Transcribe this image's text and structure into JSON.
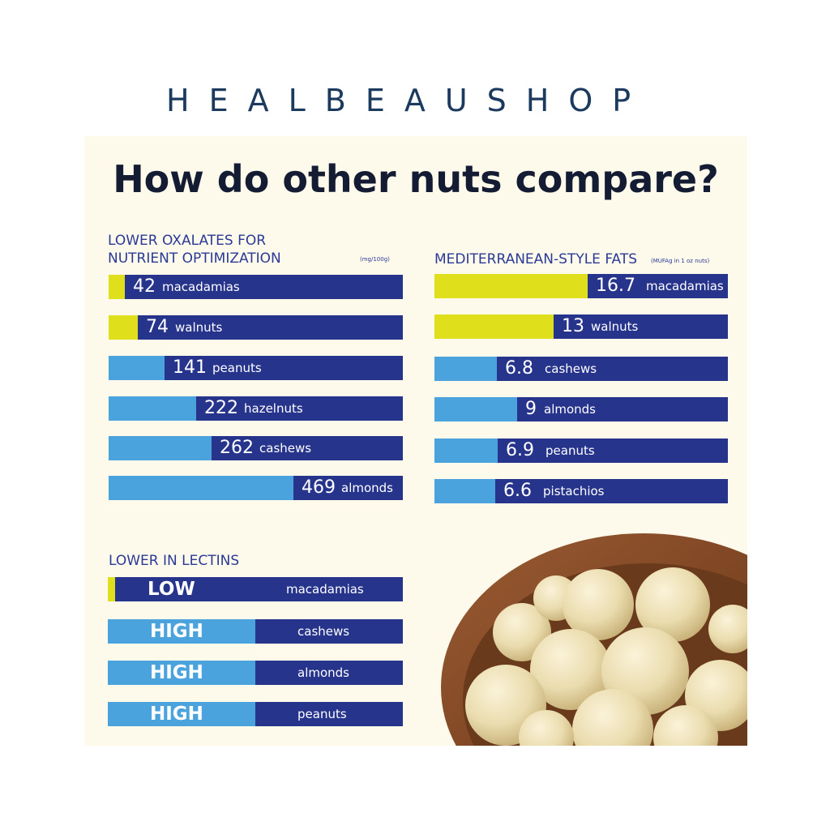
{
  "brand": "HEALBEAUSHOP",
  "title": "How do other nuts compare?",
  "colors": {
    "navy": "#27348b",
    "light_blue": "#4aa3dc",
    "yellow": "#dfe01b",
    "panel": "#fdf9eb"
  },
  "chart_data": [
    {
      "type": "bar",
      "id": "oxalates",
      "title": "LOWER OXALATES FOR\nNUTRIENT OPTIMIZATION",
      "unit_label": "(mg/100g)",
      "orientation": "horizontal",
      "scale_max": 746,
      "categories": [
        "macadamias",
        "walnuts",
        "peanuts",
        "hazelnuts",
        "cashews",
        "almonds"
      ],
      "labels": [
        "42",
        "74",
        "141",
        "222",
        "262",
        "469"
      ],
      "values": [
        42,
        74,
        141,
        222,
        262,
        469
      ],
      "highlight": [
        "macadamias",
        "walnuts"
      ]
    },
    {
      "type": "bar",
      "id": "fats",
      "title": "MEDITERRANEAN-STYLE FATS",
      "unit_label": "(MUFAg in 1 oz nuts)",
      "orientation": "horizontal",
      "scale_max": 32,
      "categories": [
        "macadamias",
        "walnuts",
        "cashews",
        "almonds",
        "peanuts",
        "pistachios"
      ],
      "labels": [
        "16.7",
        "13",
        "6.8",
        "9",
        "6.9",
        "6.6"
      ],
      "values": [
        16.7,
        13,
        6.8,
        9,
        6.9,
        6.6
      ],
      "highlight": [
        "macadamias",
        "walnuts"
      ]
    },
    {
      "type": "bar",
      "id": "lectins",
      "title": "LOWER IN LECTINS",
      "orientation": "horizontal",
      "categories": [
        "macadamias",
        "cashews",
        "almonds",
        "peanuts"
      ],
      "labels": [
        "LOW",
        "HIGH",
        "HIGH",
        "HIGH"
      ],
      "values": [
        0.025,
        0.5,
        0.5,
        0.5
      ],
      "highlight": [
        "macadamias"
      ]
    }
  ]
}
